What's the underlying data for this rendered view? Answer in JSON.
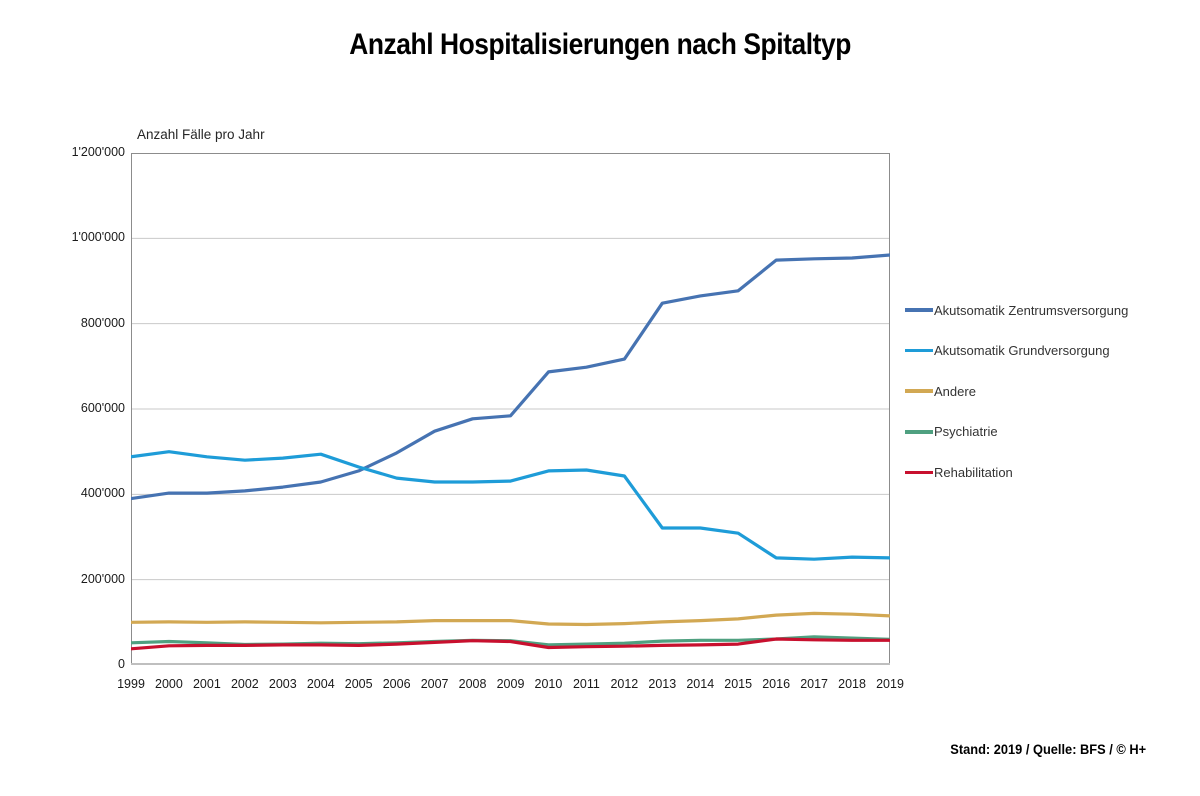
{
  "title": "Anzahl Hospitalisierungen nach Spitaltyp",
  "footer": "Stand: 2019 / Quelle: BFS / © H+",
  "chart_data": {
    "type": "line",
    "title": "Anzahl Hospitalisierungen nach Spitaltyp",
    "ylabel": "Anzahl Fälle pro Jahr",
    "xlabel": "",
    "x": [
      1999,
      2000,
      2001,
      2002,
      2003,
      2004,
      2005,
      2006,
      2007,
      2008,
      2009,
      2010,
      2011,
      2012,
      2013,
      2014,
      2015,
      2016,
      2017,
      2018,
      2019
    ],
    "ylim": [
      0,
      1200000
    ],
    "ytick_interval": 200000,
    "ytick_labels": [
      "0",
      "200'000",
      "400'000",
      "600'000",
      "800'000",
      "1'000'000",
      "1'200'000"
    ],
    "grid": true,
    "legend_position": "right",
    "series": [
      {
        "name": "Akutsomatik Zentrumsversorgung",
        "color": "#4673B2",
        "values": [
          390000,
          403000,
          403000,
          408000,
          417000,
          429000,
          455000,
          497000,
          548000,
          577000,
          584000,
          687000,
          698000,
          717000,
          848000,
          865000,
          877000,
          949000,
          952000,
          954000,
          961000
        ]
      },
      {
        "name": "Akutsomatik Grundversorgung",
        "color": "#1E9CD8",
        "values": [
          488000,
          500000,
          488000,
          480000,
          485000,
          494000,
          464000,
          438000,
          429000,
          429000,
          431000,
          455000,
          457000,
          443000,
          321000,
          321000,
          309000,
          251000,
          248000,
          253000,
          251000
        ]
      },
      {
        "name": "Andere",
        "color": "#D2A853",
        "values": [
          100000,
          101000,
          100000,
          101000,
          100000,
          99000,
          100000,
          101000,
          104000,
          104000,
          104000,
          96000,
          95000,
          97000,
          101000,
          104000,
          108000,
          117000,
          121000,
          119000,
          115000
        ]
      },
      {
        "name": "Psychiatrie",
        "color": "#4FA080",
        "values": [
          52000,
          55000,
          52000,
          48000,
          49000,
          51000,
          50000,
          52000,
          55000,
          58000,
          57000,
          47000,
          49000,
          51000,
          56000,
          58000,
          58000,
          61000,
          66000,
          63000,
          60000
        ]
      },
      {
        "name": "Rehabilitation",
        "color": "#C8102E",
        "values": [
          38000,
          45000,
          46000,
          46000,
          47000,
          47000,
          46000,
          49000,
          53000,
          57000,
          55000,
          41000,
          43000,
          44000,
          46000,
          47000,
          49000,
          61000,
          59000,
          58000,
          58000
        ]
      }
    ]
  },
  "layout_colors": {
    "gridline": "#C9C9C9",
    "plot_border": "#8C8C8C",
    "bottom_axis": "#BFBFBF"
  }
}
